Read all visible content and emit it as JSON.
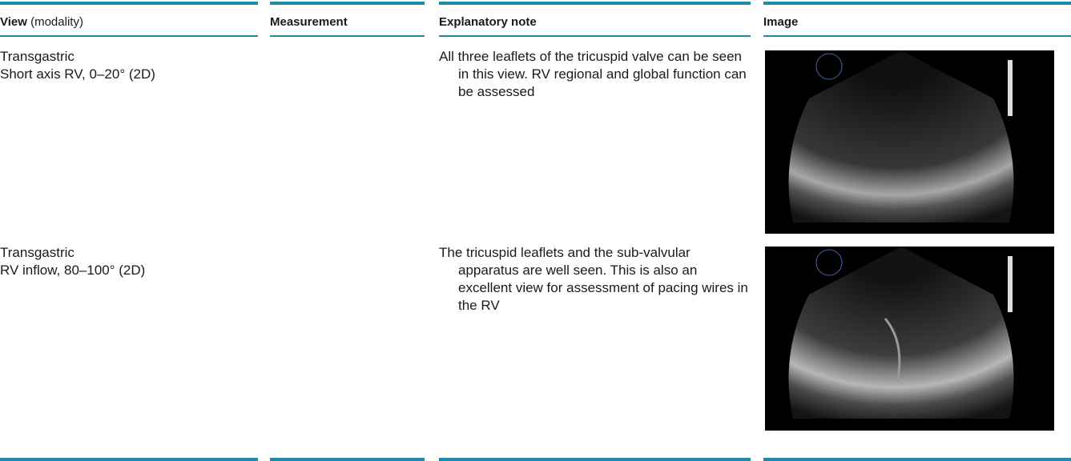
{
  "table": {
    "headers": [
      "View",
      "Measurement",
      "Explanatory note",
      "Image"
    ],
    "header_note": "(modality)",
    "rows": [
      {
        "view": [
          "Transgastric",
          "Short axis RV, 0–20° (2D)"
        ],
        "note": "All three leaflets of the tricuspid valve can be seen in this view. RV regional and global function can be assessed"
      },
      {
        "view": [
          "Transgastric",
          "RV inflow, 80–100° (2D)"
        ],
        "note": "The tricuspid leaflets and the sub-valvular apparatus are well seen. This is also an excellent view for assessment of pacing wires in the RV"
      }
    ]
  }
}
